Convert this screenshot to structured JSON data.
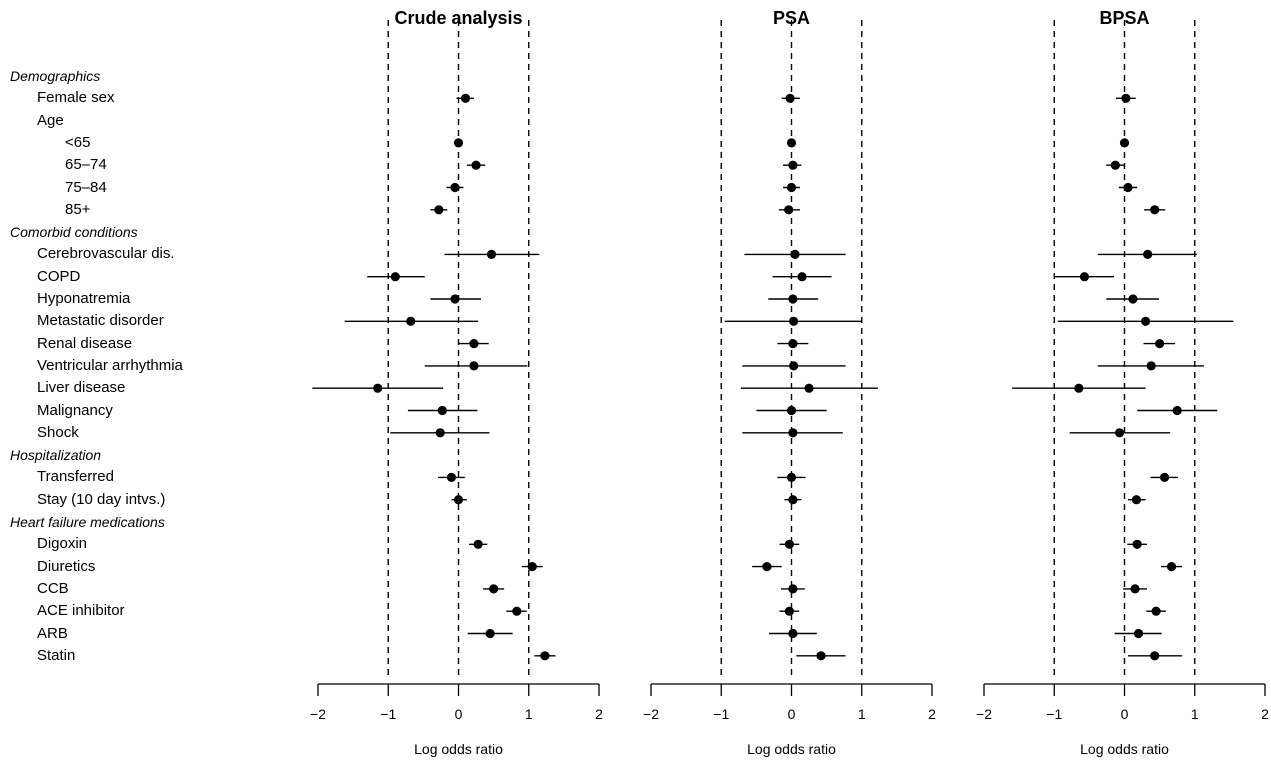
{
  "chart_data": {
    "type": "forest",
    "xlabel": "Log odds ratio",
    "xlim": [
      -2,
      2
    ],
    "xticks": [
      -2,
      -1,
      0,
      1,
      2
    ],
    "xtick_labels": [
      "−2",
      "−1",
      "0",
      "1",
      "2"
    ],
    "reference_lines": [
      -1,
      0,
      1
    ],
    "rows": [
      {
        "label": "Demographics",
        "section": true,
        "indent": 0
      },
      {
        "label": "Female sex",
        "indent": 1
      },
      {
        "label": "Age",
        "indent": 1
      },
      {
        "label": "<65",
        "indent": 2
      },
      {
        "label": "65–74",
        "indent": 2
      },
      {
        "label": "75–84",
        "indent": 2
      },
      {
        "label": "85+",
        "indent": 2
      },
      {
        "label": "Comorbid conditions",
        "section": true,
        "indent": 0
      },
      {
        "label": "Cerebrovascular dis.",
        "indent": 1
      },
      {
        "label": "COPD",
        "indent": 1
      },
      {
        "label": "Hyponatremia",
        "indent": 1
      },
      {
        "label": "Metastatic disorder",
        "indent": 1
      },
      {
        "label": "Renal disease",
        "indent": 1
      },
      {
        "label": "Ventricular arrhythmia",
        "indent": 1
      },
      {
        "label": "Liver disease",
        "indent": 1
      },
      {
        "label": "Malignancy",
        "indent": 1
      },
      {
        "label": "Shock",
        "indent": 1
      },
      {
        "label": "Hospitalization",
        "section": true,
        "indent": 0
      },
      {
        "label": "Transferred",
        "indent": 1
      },
      {
        "label": "Stay (10 day intvs.)",
        "indent": 1
      },
      {
        "label": "Heart failure medications",
        "section": true,
        "indent": 0
      },
      {
        "label": "Digoxin",
        "indent": 1
      },
      {
        "label": "Diuretics",
        "indent": 1
      },
      {
        "label": "CCB",
        "indent": 1
      },
      {
        "label": "ACE inhibitor",
        "indent": 1
      },
      {
        "label": "ARB",
        "indent": 1
      },
      {
        "label": "Statin",
        "indent": 1
      }
    ],
    "panels": [
      {
        "title": "Crude analysis",
        "points": [
          null,
          {
            "est": 0.1,
            "lo": -0.03,
            "hi": 0.22
          },
          null,
          {
            "est": 0.0,
            "lo": 0.0,
            "hi": 0.0
          },
          {
            "est": 0.25,
            "lo": 0.12,
            "hi": 0.38
          },
          {
            "est": -0.05,
            "lo": -0.17,
            "hi": 0.07
          },
          {
            "est": -0.28,
            "lo": -0.4,
            "hi": -0.16
          },
          null,
          {
            "est": 0.47,
            "lo": -0.2,
            "hi": 1.15
          },
          {
            "est": -0.9,
            "lo": -1.3,
            "hi": -0.48
          },
          {
            "est": -0.05,
            "lo": -0.4,
            "hi": 0.32
          },
          {
            "est": -0.68,
            "lo": -1.62,
            "hi": 0.28
          },
          {
            "est": 0.22,
            "lo": 0.0,
            "hi": 0.43
          },
          {
            "est": 0.22,
            "lo": -0.48,
            "hi": 0.98
          },
          {
            "est": -1.15,
            "lo": -2.08,
            "hi": -0.22
          },
          {
            "est": -0.23,
            "lo": -0.72,
            "hi": 0.27
          },
          {
            "est": -0.26,
            "lo": -0.97,
            "hi": 0.44
          },
          null,
          {
            "est": -0.1,
            "lo": -0.29,
            "hi": 0.09
          },
          {
            "est": 0.0,
            "lo": -0.1,
            "hi": 0.12
          },
          null,
          {
            "est": 0.28,
            "lo": 0.15,
            "hi": 0.41
          },
          {
            "est": 1.05,
            "lo": 0.9,
            "hi": 1.2
          },
          {
            "est": 0.5,
            "lo": 0.35,
            "hi": 0.65
          },
          {
            "est": 0.83,
            "lo": 0.68,
            "hi": 0.97
          },
          {
            "est": 0.45,
            "lo": 0.13,
            "hi": 0.77
          },
          {
            "est": 1.23,
            "lo": 1.08,
            "hi": 1.38
          }
        ]
      },
      {
        "title": "PSA",
        "points": [
          null,
          {
            "est": -0.02,
            "lo": -0.14,
            "hi": 0.12
          },
          null,
          {
            "est": 0.0,
            "lo": 0.0,
            "hi": 0.0
          },
          {
            "est": 0.02,
            "lo": -0.12,
            "hi": 0.14
          },
          {
            "est": 0.0,
            "lo": -0.12,
            "hi": 0.12
          },
          {
            "est": -0.04,
            "lo": -0.18,
            "hi": 0.12
          },
          null,
          {
            "est": 0.05,
            "lo": -0.67,
            "hi": 0.77
          },
          {
            "est": 0.15,
            "lo": -0.27,
            "hi": 0.57
          },
          {
            "est": 0.02,
            "lo": -0.33,
            "hi": 0.38
          },
          {
            "est": 0.03,
            "lo": -0.95,
            "hi": 1.0
          },
          {
            "est": 0.02,
            "lo": -0.2,
            "hi": 0.24
          },
          {
            "est": 0.03,
            "lo": -0.7,
            "hi": 0.77
          },
          {
            "est": 0.25,
            "lo": -0.72,
            "hi": 1.23
          },
          {
            "est": 0.0,
            "lo": -0.5,
            "hi": 0.5
          },
          {
            "est": 0.02,
            "lo": -0.7,
            "hi": 0.73
          },
          null,
          {
            "est": 0.0,
            "lo": -0.2,
            "hi": 0.2
          },
          {
            "est": 0.02,
            "lo": -0.1,
            "hi": 0.14
          },
          null,
          {
            "est": -0.03,
            "lo": -0.17,
            "hi": 0.11
          },
          {
            "est": -0.35,
            "lo": -0.56,
            "hi": -0.14
          },
          {
            "est": 0.02,
            "lo": -0.15,
            "hi": 0.19
          },
          {
            "est": -0.03,
            "lo": -0.17,
            "hi": 0.11
          },
          {
            "est": 0.02,
            "lo": -0.32,
            "hi": 0.36
          },
          {
            "est": 0.42,
            "lo": 0.07,
            "hi": 0.77
          }
        ]
      },
      {
        "title": "BPSA",
        "points": [
          null,
          {
            "est": 0.02,
            "lo": -0.12,
            "hi": 0.16
          },
          null,
          {
            "est": 0.0,
            "lo": 0.0,
            "hi": 0.0
          },
          {
            "est": -0.13,
            "lo": -0.26,
            "hi": 0.0
          },
          {
            "est": 0.05,
            "lo": -0.08,
            "hi": 0.18
          },
          {
            "est": 0.43,
            "lo": 0.28,
            "hi": 0.58
          },
          null,
          {
            "est": 0.33,
            "lo": -0.38,
            "hi": 1.03
          },
          {
            "est": -0.57,
            "lo": -0.99,
            "hi": -0.15
          },
          {
            "est": 0.12,
            "lo": -0.26,
            "hi": 0.49
          },
          {
            "est": 0.3,
            "lo": -0.95,
            "hi": 1.55
          },
          {
            "est": 0.5,
            "lo": 0.27,
            "hi": 0.72
          },
          {
            "est": 0.38,
            "lo": -0.38,
            "hi": 1.13
          },
          {
            "est": -0.65,
            "lo": -1.6,
            "hi": 0.3
          },
          {
            "est": 0.75,
            "lo": 0.18,
            "hi": 1.32
          },
          {
            "est": -0.07,
            "lo": -0.78,
            "hi": 0.65
          },
          null,
          {
            "est": 0.57,
            "lo": 0.37,
            "hi": 0.76
          },
          {
            "est": 0.17,
            "lo": 0.05,
            "hi": 0.3
          },
          null,
          {
            "est": 0.18,
            "lo": 0.04,
            "hi": 0.32
          },
          {
            "est": 0.67,
            "lo": 0.52,
            "hi": 0.82
          },
          {
            "est": 0.15,
            "lo": -0.02,
            "hi": 0.32
          },
          {
            "est": 0.45,
            "lo": 0.31,
            "hi": 0.59
          },
          {
            "est": 0.2,
            "lo": -0.14,
            "hi": 0.53
          },
          {
            "est": 0.43,
            "lo": 0.05,
            "hi": 0.82
          }
        ]
      }
    ]
  }
}
